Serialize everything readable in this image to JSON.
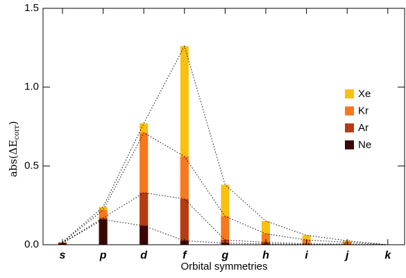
{
  "chart_data": {
    "type": "bar",
    "xlabel": "Orbital symmetries",
    "ylabel": {
      "main": "abs(ΔE",
      "sub": "corr",
      "end": ")"
    },
    "categories": [
      "s",
      "p",
      "d",
      "f",
      "g",
      "h",
      "i",
      "j",
      "k"
    ],
    "series": [
      {
        "name": "Xe",
        "color": "#f9c00f",
        "values": [
          0.016,
          0.24,
          0.77,
          1.26,
          0.38,
          0.15,
          0.06,
          0.025,
          0
        ]
      },
      {
        "name": "Kr",
        "color": "#f7781e",
        "values": [
          0.014,
          0.22,
          0.71,
          0.56,
          0.18,
          0.07,
          0.03,
          0.015,
          0
        ]
      },
      {
        "name": "Ar",
        "color": "#b53c12",
        "values": [
          0.012,
          0.17,
          0.33,
          0.29,
          0.03,
          0.015,
          0.006,
          0.004,
          0
        ]
      },
      {
        "name": "Ne",
        "color": "#3a0707",
        "values": [
          0.01,
          0.16,
          0.12,
          0.025,
          0.01,
          0.005,
          0.002,
          0.001,
          0
        ]
      }
    ],
    "ylim": [
      0,
      1.5
    ],
    "yticks": [
      {
        "value": 0,
        "label": "0.0"
      },
      0.5,
      {
        "value": 1,
        "label": "1.0"
      },
      1.5
    ],
    "legend": "right"
  }
}
